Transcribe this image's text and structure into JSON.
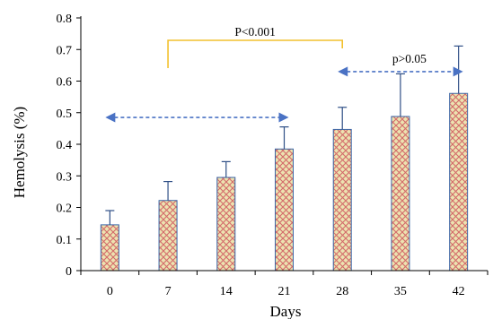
{
  "chart_data": {
    "type": "bar",
    "title": "",
    "xlabel": "Days",
    "ylabel": "Hemolysis (%)",
    "categories": [
      "0",
      "7",
      "14",
      "21",
      "28",
      "35",
      "42"
    ],
    "values": [
      0.145,
      0.222,
      0.295,
      0.385,
      0.447,
      0.488,
      0.561
    ],
    "error_plus": [
      0.045,
      0.06,
      0.05,
      0.07,
      0.07,
      0.135,
      0.15
    ],
    "ylim": [
      0,
      0.8
    ],
    "yticks": [
      "0",
      "0.1",
      "0.2",
      "0.3",
      "0.4",
      "0.5",
      "0.6",
      "0.7",
      "0.8"
    ],
    "grid": false,
    "colors": {
      "bar_fill": "#ece3b0",
      "hatch": "#d46a6a",
      "bar_stroke": "#3b67a8",
      "error_bar": "#2f4f86",
      "bracket": "#f2c12e",
      "arrow": "#4a72c4"
    },
    "annotations": [
      {
        "type": "bracket",
        "from": "7",
        "to": "28",
        "text": "P<0.001"
      },
      {
        "type": "double-arrow",
        "from": "0",
        "to": "21",
        "y": 0.485,
        "text": ""
      },
      {
        "type": "double-arrow",
        "from": "28",
        "to": "42",
        "y": 0.63,
        "text": "p>0.05"
      }
    ]
  }
}
